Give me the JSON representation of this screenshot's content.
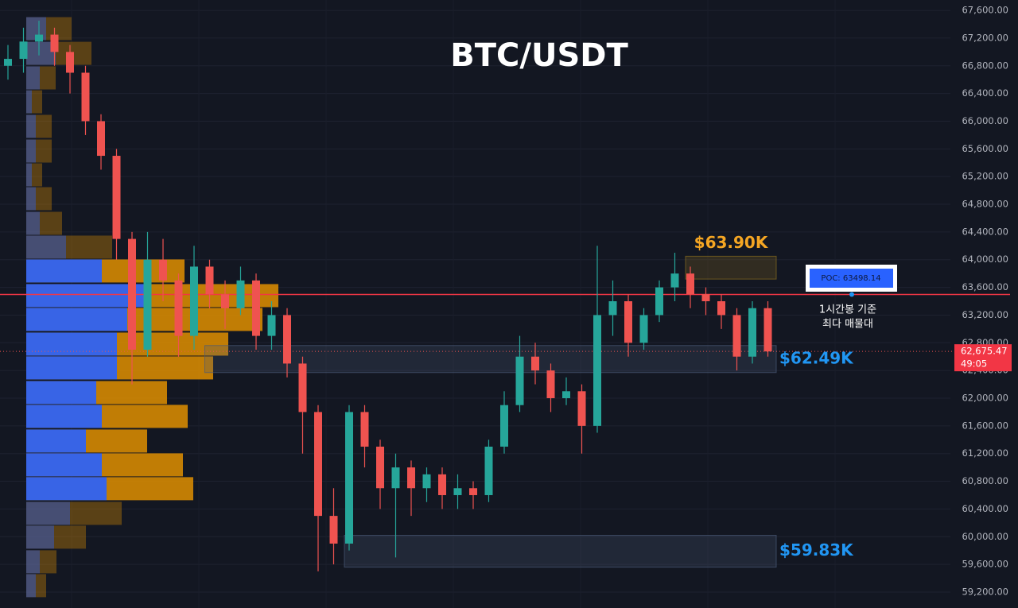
{
  "chart_data": {
    "type": "candlestick",
    "title": "BTC/USDT",
    "ylim": [
      58970,
      67750
    ],
    "yticks": [
      {
        "value": 59200,
        "label": "59,200.00"
      },
      {
        "value": 59600,
        "label": "59,600.00"
      },
      {
        "value": 60000,
        "label": "60,000.00"
      },
      {
        "value": 60400,
        "label": "60,400.00"
      },
      {
        "value": 60800,
        "label": "60,800.00"
      },
      {
        "value": 61200,
        "label": "61,200.00"
      },
      {
        "value": 61600,
        "label": "61,600.00"
      },
      {
        "value": 62000,
        "label": "62,000.00"
      },
      {
        "value": 62400,
        "label": "62,400.00"
      },
      {
        "value": 62800,
        "label": "62,800.00"
      },
      {
        "value": 63200,
        "label": "63,200.00"
      },
      {
        "value": 63600,
        "label": "63,600.00"
      },
      {
        "value": 64000,
        "label": "64,000.00"
      },
      {
        "value": 64400,
        "label": "64,400.00"
      },
      {
        "value": 64800,
        "label": "64,800.00"
      },
      {
        "value": 65200,
        "label": "65,200.00"
      },
      {
        "value": 65600,
        "label": "65,600.00"
      },
      {
        "value": 66000,
        "label": "66,000.00"
      },
      {
        "value": 66400,
        "label": "66,400.00"
      },
      {
        "value": 66800,
        "label": "66,800.00"
      },
      {
        "value": 67200,
        "label": "67,200.00"
      },
      {
        "value": 67600,
        "label": "67,600.00"
      }
    ],
    "grid": true,
    "colors": {
      "up": "#26a69a",
      "down": "#ef5350",
      "buy": "#2962ff",
      "sell": "#e08f00",
      "poc": "#f23645"
    },
    "open": [
      66800,
      66900,
      67150,
      67250,
      67000,
      66700,
      66000,
      65500,
      64300,
      62700,
      64000,
      63700,
      62900,
      63900,
      63500,
      63300,
      63700,
      62900,
      63200,
      62500,
      61800,
      60300,
      59900,
      61800,
      61300,
      60700,
      61000,
      60700,
      60900,
      60600,
      60700,
      60600,
      61300,
      61900,
      62600,
      62400,
      62000,
      62100,
      61600,
      63200,
      63400,
      62800,
      63200,
      63600,
      63800,
      63500,
      63400,
      63200,
      62600,
      63300
    ],
    "high": [
      67100,
      67350,
      67450,
      67350,
      67100,
      66800,
      66100,
      65600,
      64400,
      64400,
      64300,
      63800,
      64200,
      64000,
      63700,
      63900,
      63800,
      63400,
      63300,
      62600,
      61900,
      60700,
      61900,
      61900,
      61400,
      61200,
      61100,
      61000,
      61000,
      60900,
      60800,
      61400,
      62100,
      62900,
      62800,
      62500,
      62300,
      62200,
      64200,
      63700,
      63500,
      63300,
      63700,
      64100,
      63900,
      63600,
      63500,
      63300,
      63400,
      63400
    ],
    "low": [
      66600,
      66700,
      66950,
      66800,
      66400,
      65800,
      65300,
      64000,
      62200,
      62600,
      63400,
      62600,
      62700,
      63300,
      63000,
      63200,
      62700,
      62700,
      62300,
      61200,
      59500,
      59600,
      59800,
      61000,
      60400,
      59700,
      60300,
      60500,
      60400,
      60400,
      60400,
      60500,
      61200,
      61800,
      62200,
      61800,
      61900,
      61200,
      61500,
      62900,
      62600,
      62700,
      63100,
      63400,
      63300,
      63200,
      63000,
      62400,
      62500,
      62600
    ],
    "close": [
      66900,
      67150,
      67250,
      67000,
      66700,
      66000,
      65500,
      64300,
      62700,
      64000,
      63700,
      62900,
      63900,
      63500,
      63300,
      63700,
      62900,
      63200,
      62500,
      61800,
      60300,
      59900,
      61800,
      61300,
      60700,
      61000,
      60700,
      60900,
      60600,
      60700,
      60600,
      61300,
      61900,
      62600,
      62400,
      62000,
      62100,
      61600,
      63200,
      63400,
      62800,
      63200,
      63600,
      63800,
      63500,
      63400,
      63200,
      62600,
      63300,
      62675.47
    ],
    "volume_profile": {
      "price": [
        67336,
        66980,
        66625,
        66280,
        65925,
        65569,
        65225,
        64881,
        64525,
        64181,
        63837,
        63481,
        63137,
        62781,
        62437,
        62081,
        61737,
        61381,
        61037,
        60693,
        60337,
        59993,
        59637,
        59293
      ],
      "buy": [
        25,
        37,
        17,
        7,
        12,
        12,
        7,
        12,
        17,
        50,
        95,
        152,
        127,
        114,
        114,
        88,
        95,
        75,
        95,
        101,
        55,
        35,
        17,
        12
      ],
      "sell": [
        32,
        45,
        20,
        13,
        20,
        20,
        13,
        20,
        28,
        58,
        104,
        165,
        170,
        140,
        121,
        89,
        108,
        77,
        102,
        109,
        65,
        40,
        21,
        13
      ],
      "value_area": {
        "high": 64000,
        "low": 60500
      }
    },
    "zones": [
      {
        "label": "$63.90K",
        "top": 64050,
        "bottom": 63720,
        "from": 44,
        "color": "#8a6d1f",
        "text_color": "#f5a623"
      },
      {
        "label": "$62.49K",
        "top": 62760,
        "bottom": 62370,
        "from": 13,
        "color": "#4a5a78",
        "text_color": "#2196f3"
      },
      {
        "label": "$59.83K",
        "top": 60020,
        "bottom": 59560,
        "from": 22,
        "color": "#4a5a78",
        "text_color": "#2196f3"
      }
    ],
    "poc": {
      "value": 63498.14,
      "label": "POC: 63498.14"
    },
    "note": [
      "1시간봉 기준",
      "최다 매물대"
    ],
    "last_price": {
      "value": 62675.47,
      "label": "62,675.47"
    },
    "countdown": "49:05"
  }
}
